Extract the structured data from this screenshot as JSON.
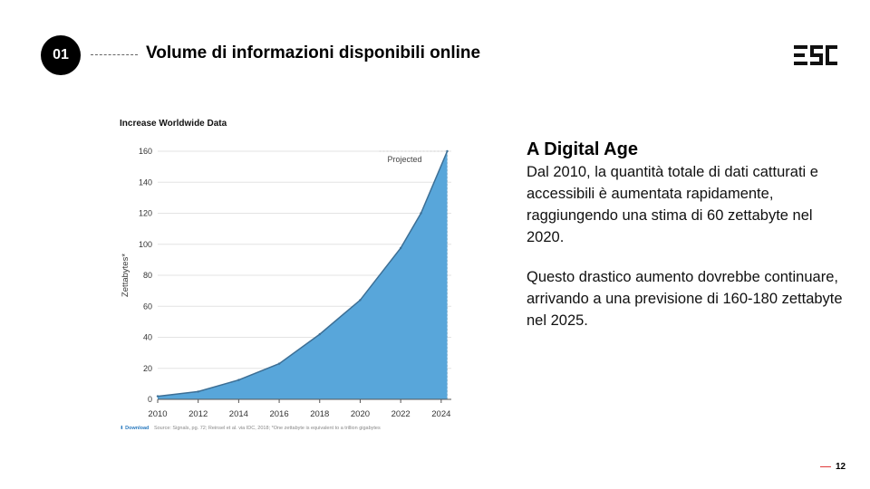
{
  "slide": {
    "number": "01",
    "title": "Volume di informazioni disponibili online",
    "logo_text": "ESC",
    "page": "12"
  },
  "text": {
    "heading": "A Digital Age",
    "para1": "Dal 2010, la quantità totale di dati catturati e accessibili è aumentata rapidamente, raggiungendo una stima di 60 zettabyte nel 2020.",
    "para2": "Questo drastico aumento dovrebbe continuare, arrivando a una previsione di 160-180 zettabyte nel 2025."
  },
  "footer": {
    "download": "Download",
    "source": "Source: Signals, pg. 72; Reinsel et al. via IDC, 2018; *One zettabyte is equivalent to a trillion gigabytes"
  },
  "colors": {
    "area_fill": "#58a6da",
    "area_stroke": "#3d6f95",
    "accent_red": "#e03b3b"
  },
  "chart_data": {
    "type": "area",
    "title": "Increase Worldwide Data",
    "xlabel": "",
    "ylabel": "Zettabytes*",
    "annotation": "Projected",
    "x": [
      2010,
      2012,
      2014,
      2016,
      2018,
      2020,
      2022,
      2023,
      2024.3
    ],
    "values": [
      2,
      5,
      12.5,
      23,
      42,
      64,
      97.5,
      120,
      160
    ],
    "xticks": [
      "2010",
      "2012",
      "2014",
      "2016",
      "2018",
      "2020",
      "2022",
      "2024"
    ],
    "yticks": [
      "0",
      "20",
      "40",
      "60",
      "80",
      "100",
      "120",
      "140",
      "160"
    ],
    "xlim": [
      2010,
      2024.5
    ],
    "ylim": [
      0,
      160
    ],
    "grid": true,
    "projected_from": 2024.3
  }
}
